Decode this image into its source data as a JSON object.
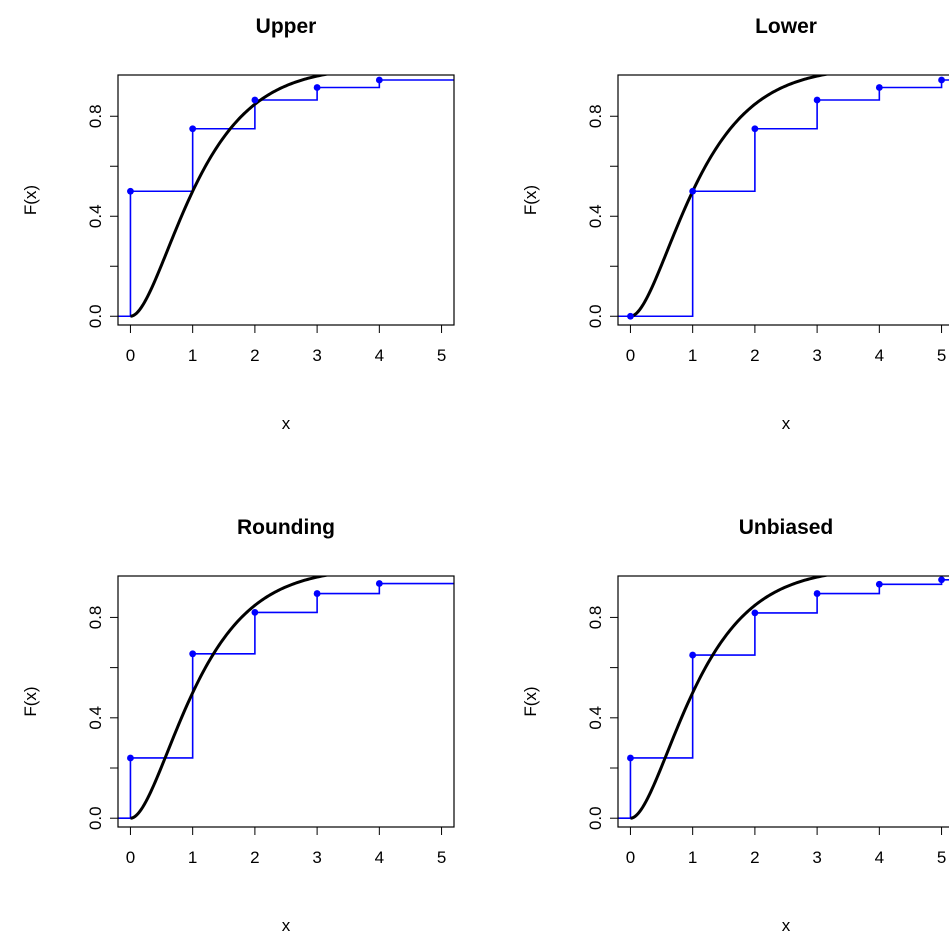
{
  "colors": {
    "theoretical": "#000000",
    "empirical": "#0000ff",
    "axis": "#000000",
    "background": "#ffffff"
  },
  "chart_data": [
    {
      "type": "line",
      "title": "Upper",
      "xlabel": "x",
      "ylabel": "F(x)",
      "xlim": [
        -0.2,
        5.2
      ],
      "ylim": [
        -0.035,
        0.965
      ],
      "xticks": [
        "0",
        "1",
        "2",
        "3",
        "4",
        "5"
      ],
      "yticks": [
        "0.0",
        "0.4",
        "0.8"
      ],
      "grid": false,
      "curve": {
        "function": "gamma_cdf",
        "shape": 2,
        "rate": 1.678,
        "x_range": [
          0,
          5
        ]
      },
      "step": {
        "x": [
          0,
          1,
          2,
          3,
          4
        ],
        "y": [
          0.5,
          0.75,
          0.865,
          0.915,
          0.945
        ],
        "left_value": 0,
        "right_end": 5.2
      }
    },
    {
      "type": "line",
      "title": "Lower",
      "xlabel": "x",
      "ylabel": "F(x)",
      "xlim": [
        -0.2,
        5.2
      ],
      "ylim": [
        -0.035,
        0.965
      ],
      "xticks": [
        "0",
        "1",
        "2",
        "3",
        "4",
        "5"
      ],
      "yticks": [
        "0.0",
        "0.4",
        "0.8"
      ],
      "grid": false,
      "curve": {
        "function": "gamma_cdf",
        "shape": 2,
        "rate": 1.678,
        "x_range": [
          0,
          5
        ]
      },
      "step": {
        "x": [
          0,
          1,
          2,
          3,
          4,
          5
        ],
        "y": [
          0,
          0.5,
          0.75,
          0.865,
          0.915,
          0.945
        ],
        "left_value": 0,
        "right_end": 5.2
      }
    },
    {
      "type": "line",
      "title": "Rounding",
      "xlabel": "x",
      "ylabel": "F(x)",
      "xlim": [
        -0.2,
        5.2
      ],
      "ylim": [
        -0.035,
        0.965
      ],
      "xticks": [
        "0",
        "1",
        "2",
        "3",
        "4",
        "5"
      ],
      "yticks": [
        "0.0",
        "0.4",
        "0.8"
      ],
      "grid": false,
      "curve": {
        "function": "gamma_cdf",
        "shape": 2,
        "rate": 1.678,
        "x_range": [
          0,
          5
        ]
      },
      "step": {
        "x": [
          0,
          1,
          2,
          3,
          4
        ],
        "y": [
          0.24,
          0.655,
          0.82,
          0.895,
          0.935
        ],
        "left_value": 0,
        "right_end": 5.2
      }
    },
    {
      "type": "line",
      "title": "Unbiased",
      "xlabel": "x",
      "ylabel": "F(x)",
      "xlim": [
        -0.2,
        5.2
      ],
      "ylim": [
        -0.035,
        0.965
      ],
      "xticks": [
        "0",
        "1",
        "2",
        "3",
        "4",
        "5"
      ],
      "yticks": [
        "0.0",
        "0.4",
        "0.8"
      ],
      "grid": false,
      "curve": {
        "function": "gamma_cdf",
        "shape": 2,
        "rate": 1.678,
        "x_range": [
          0,
          5
        ]
      },
      "step": {
        "x": [
          0,
          1,
          2,
          3,
          4,
          5
        ],
        "y": [
          0.24,
          0.65,
          0.818,
          0.895,
          0.932,
          0.95
        ],
        "left_value": 0,
        "right_end": 5.2
      }
    }
  ]
}
